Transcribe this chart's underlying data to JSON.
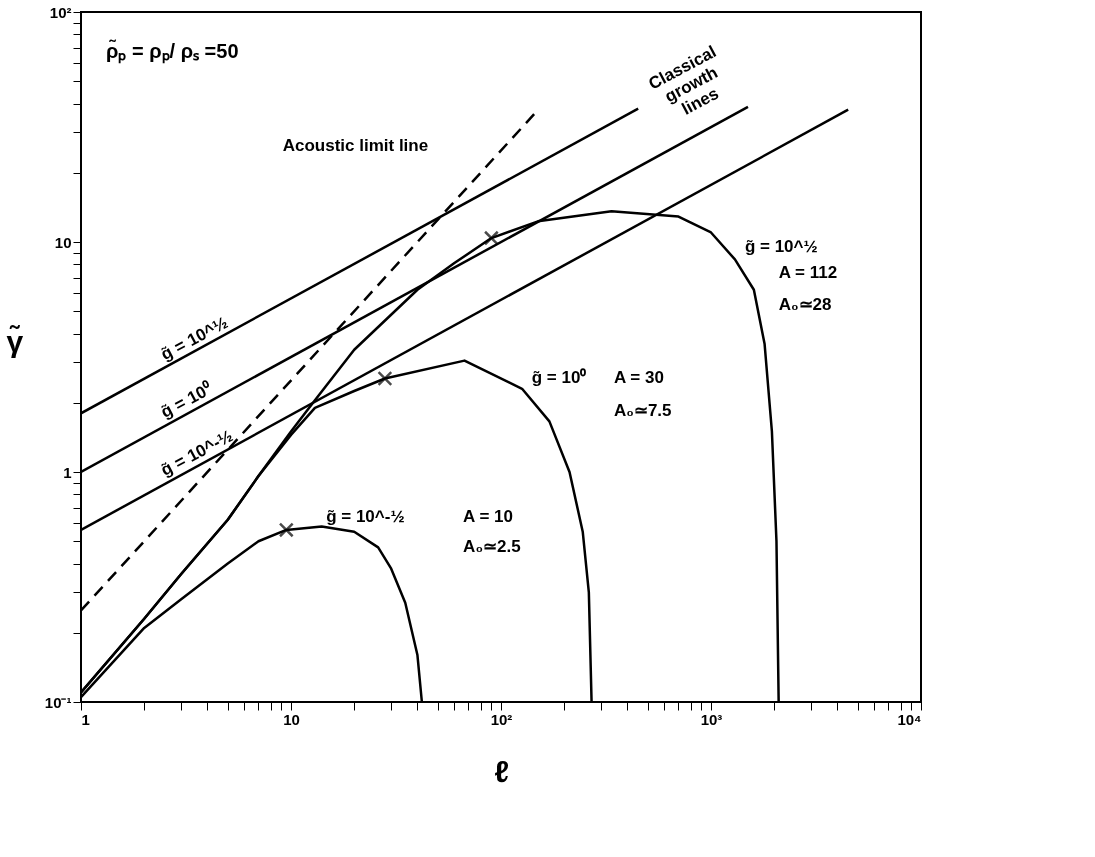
{
  "chart_data": {
    "type": "line",
    "xlabel": "ℓ",
    "ylabel": "γ̃",
    "xlim": [
      1,
      10000
    ],
    "ylim": [
      0.1,
      100
    ],
    "log": "xy",
    "grid": false,
    "xticks": [
      {
        "value": 1,
        "label": "1"
      },
      {
        "value": 2,
        "label": null
      },
      {
        "value": 3,
        "label": null
      },
      {
        "value": 4,
        "label": null
      },
      {
        "value": 5,
        "label": null
      },
      {
        "value": 6,
        "label": null
      },
      {
        "value": 7,
        "label": null
      },
      {
        "value": 8,
        "label": null
      },
      {
        "value": 9,
        "label": null
      },
      {
        "value": 10,
        "label": "10"
      },
      {
        "value": 20,
        "label": null
      },
      {
        "value": 30,
        "label": null
      },
      {
        "value": 40,
        "label": null
      },
      {
        "value": 50,
        "label": null
      },
      {
        "value": 60,
        "label": null
      },
      {
        "value": 70,
        "label": null
      },
      {
        "value": 80,
        "label": null
      },
      {
        "value": 90,
        "label": null
      },
      {
        "value": 100,
        "label": "10²"
      },
      {
        "value": 200,
        "label": null
      },
      {
        "value": 300,
        "label": null
      },
      {
        "value": 400,
        "label": null
      },
      {
        "value": 500,
        "label": null
      },
      {
        "value": 600,
        "label": null
      },
      {
        "value": 700,
        "label": null
      },
      {
        "value": 800,
        "label": null
      },
      {
        "value": 900,
        "label": null
      },
      {
        "value": 1000,
        "label": "10³"
      },
      {
        "value": 2000,
        "label": null
      },
      {
        "value": 3000,
        "label": null
      },
      {
        "value": 4000,
        "label": null
      },
      {
        "value": 5000,
        "label": null
      },
      {
        "value": 6000,
        "label": null
      },
      {
        "value": 7000,
        "label": null
      },
      {
        "value": 8000,
        "label": null
      },
      {
        "value": 9000,
        "label": null
      },
      {
        "value": 10000,
        "label": "10⁴"
      }
    ],
    "yticks": [
      {
        "value": 0.1,
        "label": "10⁻¹"
      },
      {
        "value": 0.2,
        "label": null
      },
      {
        "value": 0.3,
        "label": null
      },
      {
        "value": 0.4,
        "label": null
      },
      {
        "value": 0.5,
        "label": null
      },
      {
        "value": 0.6,
        "label": null
      },
      {
        "value": 0.7,
        "label": null
      },
      {
        "value": 0.8,
        "label": null
      },
      {
        "value": 0.9,
        "label": null
      },
      {
        "value": 1,
        "label": "1"
      },
      {
        "value": 2,
        "label": null
      },
      {
        "value": 3,
        "label": null
      },
      {
        "value": 4,
        "label": null
      },
      {
        "value": 5,
        "label": null
      },
      {
        "value": 6,
        "label": null
      },
      {
        "value": 7,
        "label": null
      },
      {
        "value": 8,
        "label": null
      },
      {
        "value": 9,
        "label": null
      },
      {
        "value": 10,
        "label": "10"
      },
      {
        "value": 20,
        "label": null
      },
      {
        "value": 30,
        "label": null
      },
      {
        "value": 40,
        "label": null
      },
      {
        "value": 50,
        "label": null
      },
      {
        "value": 60,
        "label": null
      },
      {
        "value": 70,
        "label": null
      },
      {
        "value": 80,
        "label": null
      },
      {
        "value": 90,
        "label": null
      },
      {
        "value": 100,
        "label": "10²"
      }
    ],
    "series": [
      {
        "type": "line",
        "color": "#000000",
        "line_style": "solid",
        "x": [
          1,
          450
        ],
        "values": [
          1.8,
          38
        ]
      },
      {
        "type": "line",
        "color": "#000000",
        "line_style": "solid",
        "x": [
          1,
          1500
        ],
        "values": [
          1.0,
          38.7
        ]
      },
      {
        "type": "line",
        "color": "#000000",
        "line_style": "solid",
        "x": [
          1,
          4500
        ],
        "values": [
          0.56,
          37.6
        ]
      },
      {
        "type": "line",
        "color": "#000000",
        "line_style": "dashed",
        "x": [
          1,
          150
        ],
        "values": [
          0.25,
          37.5
        ]
      },
      {
        "type": "line",
        "color": "#000000",
        "line_style": "solid",
        "x": [
          1,
          2,
          3,
          5,
          7,
          10,
          13,
          20,
          40,
          60,
          90,
          150,
          336,
          700,
          1000,
          1300,
          1600,
          1800,
          1950,
          2050,
          2100
        ],
        "values": [
          0.11,
          0.23,
          0.36,
          0.62,
          0.96,
          1.5,
          2.05,
          3.4,
          6.2,
          8.1,
          10.4,
          12.3,
          13.6,
          12.9,
          11.0,
          8.4,
          6.2,
          3.6,
          1.5,
          0.5,
          0.1
        ]
      },
      {
        "type": "line",
        "color": "#000000",
        "line_style": "solid",
        "x": [
          1,
          2,
          3,
          5,
          7,
          10,
          13,
          20,
          28,
          67,
          126,
          170,
          212,
          245,
          262,
          270
        ],
        "values": [
          0.11,
          0.23,
          0.36,
          0.62,
          0.96,
          1.45,
          1.9,
          2.25,
          2.55,
          3.05,
          2.3,
          1.66,
          1.0,
          0.55,
          0.3,
          0.1
        ]
      },
      {
        "type": "line",
        "color": "#000000",
        "line_style": "solid",
        "x": [
          1,
          2,
          3,
          5,
          7,
          9.5,
          14,
          20,
          26,
          30,
          35,
          40,
          42
        ],
        "values": [
          0.105,
          0.21,
          0.28,
          0.4,
          0.5,
          0.56,
          0.58,
          0.55,
          0.47,
          0.38,
          0.27,
          0.16,
          0.1
        ]
      },
      {
        "type": "scatter",
        "color": "#000000",
        "marker": "cross",
        "x": [
          9.5,
          28,
          90
        ],
        "values": [
          0.56,
          2.55,
          10.4
        ]
      }
    ],
    "annotations": [
      "ρ̃ₚ = ρₚ/ ρₛ =50",
      "Acoustic limit line",
      "Classical growth lines",
      "g̃ = 10^½",
      "g̃ = 10⁰",
      "g̃ = 10^-½",
      "g̃ = 10^½",
      "A = 112",
      "A₀≃28",
      "g̃ = 10⁰",
      "A = 30",
      "A₀≃7.5",
      "g̃ = 10^-½",
      "A = 10",
      "A₀≃2.5"
    ]
  }
}
